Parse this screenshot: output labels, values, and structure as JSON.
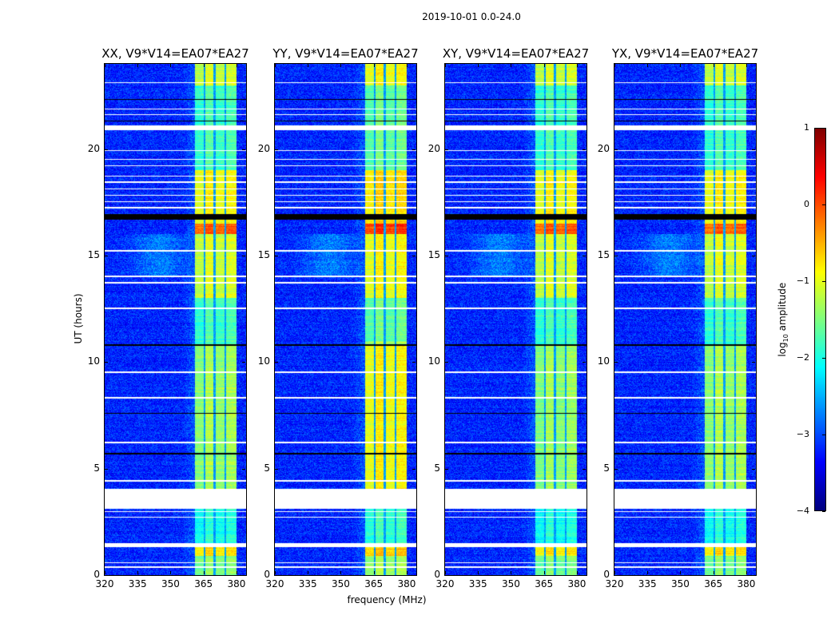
{
  "chart_data": {
    "type": "heatmap",
    "title": "2019-10-01 0.0-24.0",
    "xlabel": "frequency (MHz)",
    "ylabel": "UT (hours)",
    "xlim": [
      320,
      384.4
    ],
    "ylim": [
      0,
      24
    ],
    "xticks": [
      "320",
      "335",
      "350",
      "365",
      "380"
    ],
    "xtick_values": [
      320,
      335,
      350,
      365,
      380
    ],
    "yticks": [
      "0",
      "5",
      "10",
      "15",
      "20"
    ],
    "ytick_values": [
      0,
      5,
      10,
      15,
      20
    ],
    "panels": [
      {
        "title": "XX, V9*V14=EA07*EA27",
        "pol": "XX",
        "band_boost": 0.0
      },
      {
        "title": "YY, V9*V14=EA07*EA27",
        "pol": "YY",
        "band_boost": 0.45
      },
      {
        "title": "XY, V9*V14=EA07*EA27",
        "pol": "XY",
        "band_boost": -0.05
      },
      {
        "title": "YX, V9*V14=EA07*EA27",
        "pol": "YX",
        "band_boost": 0.0
      }
    ],
    "colorbar": {
      "label_main": "log",
      "label_sub": "10",
      "label_tail": " amplitude",
      "colormap": "jet",
      "range": [
        -4,
        1
      ],
      "ticks": [
        "1",
        "0",
        "−1",
        "−2",
        "−3",
        "−4"
      ],
      "tick_values": [
        1,
        0,
        -1,
        -2,
        -3,
        -4
      ]
    },
    "background_log_amp": -3.2,
    "rfi_band_mhz": [
      361,
      380
    ],
    "rfi_gaps_mhz": [
      365.5,
      370,
      375
    ],
    "rfi_levels": [
      {
        "t": [
          0,
          0.9
        ],
        "v": -1.6
      },
      {
        "t": [
          0.9,
          1.3
        ],
        "v": -0.9
      },
      {
        "t": [
          1.3,
          4.0
        ],
        "v": -2.1
      },
      {
        "t": [
          4.0,
          10.8
        ],
        "v": -1.45
      },
      {
        "t": [
          10.8,
          13.0
        ],
        "v": -1.9
      },
      {
        "t": [
          13.0,
          16.0
        ],
        "v": -1.2
      },
      {
        "t": [
          16.0,
          16.5
        ],
        "v": -0.15
      },
      {
        "t": [
          16.5,
          19.0
        ],
        "v": -1.0
      },
      {
        "t": [
          19.0,
          23.0
        ],
        "v": -1.9
      },
      {
        "t": [
          23.0,
          24.0
        ],
        "v": -1.2
      }
    ],
    "flagged_hours": [
      [
        3.1,
        4.05
      ],
      [
        2.95,
        3.0
      ],
      [
        2.7,
        2.75
      ],
      [
        1.3,
        1.5
      ],
      [
        0.55,
        0.6
      ],
      [
        0.35,
        0.4
      ],
      [
        4.4,
        4.45
      ],
      [
        6.2,
        6.25
      ],
      [
        8.3,
        8.35
      ],
      [
        9.5,
        9.55
      ],
      [
        12.5,
        12.55
      ],
      [
        13.7,
        13.75
      ],
      [
        14.0,
        14.05
      ],
      [
        15.2,
        15.25
      ],
      [
        17.2,
        17.3
      ],
      [
        17.5,
        17.55
      ],
      [
        17.8,
        17.85
      ],
      [
        18.1,
        18.15
      ],
      [
        18.4,
        18.5
      ],
      [
        18.7,
        18.75
      ],
      [
        19.2,
        19.25
      ],
      [
        19.5,
        19.55
      ],
      [
        19.9,
        19.95
      ],
      [
        20.9,
        21.1
      ],
      [
        21.6,
        21.65
      ],
      [
        21.85,
        21.9
      ],
      [
        23.1,
        23.15
      ]
    ],
    "black_rows_hours": [
      [
        5.65,
        5.72
      ],
      [
        7.58,
        7.63
      ],
      [
        10.78,
        10.84
      ],
      [
        16.7,
        16.95
      ],
      [
        21.3,
        21.34
      ],
      [
        22.3,
        22.34
      ],
      [
        23.2,
        23.23
      ],
      [
        11.5,
        11.53
      ],
      [
        13.0,
        13.03
      ]
    ]
  }
}
